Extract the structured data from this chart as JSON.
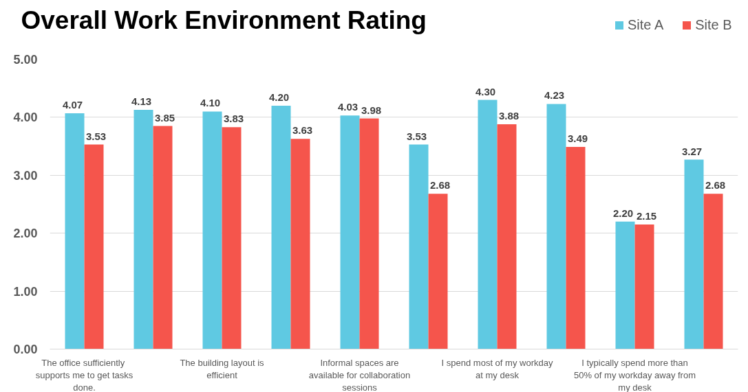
{
  "chart_data": {
    "type": "bar",
    "title": "Overall Work Environment Rating",
    "categories": [
      "The office  sufficiently supports me to get tasks done.",
      null,
      "The building layout is efficient",
      null,
      "Informal spaces are available for collaboration sessions",
      null,
      "I spend most of my workday at my desk",
      null,
      "I typically spend more than 50% of my workday away from my desk",
      null
    ],
    "series": [
      {
        "name": "Site A",
        "color": "#5fc9e2",
        "values": [
          4.07,
          4.13,
          4.1,
          4.2,
          4.03,
          3.53,
          4.3,
          4.23,
          2.2,
          3.27
        ],
        "value_labels": [
          "4.07",
          "4.13",
          "4.10",
          "4.20",
          "4.03",
          "3.53",
          "4.30",
          "4.23",
          "2.20",
          "3.27"
        ]
      },
      {
        "name": "Site B",
        "color": "#f5554c",
        "values": [
          3.53,
          3.85,
          3.83,
          3.63,
          3.98,
          2.68,
          3.88,
          3.49,
          2.15,
          2.68
        ],
        "value_labels": [
          "3.53",
          "3.85",
          "3.83",
          "3.63",
          "3.98",
          "2.68",
          "3.88",
          "3.49",
          "2.15",
          "2.68"
        ]
      }
    ],
    "ylim": [
      0,
      5
    ],
    "yticks": [
      {
        "value": 0,
        "label": "0.00"
      },
      {
        "value": 1,
        "label": "1.00"
      },
      {
        "value": 2,
        "label": "2.00"
      },
      {
        "value": 3,
        "label": "3.00"
      },
      {
        "value": 4,
        "label": "4.00"
      },
      {
        "value": 5,
        "label": "5.00"
      }
    ],
    "grid": "y",
    "legend": "top right"
  }
}
